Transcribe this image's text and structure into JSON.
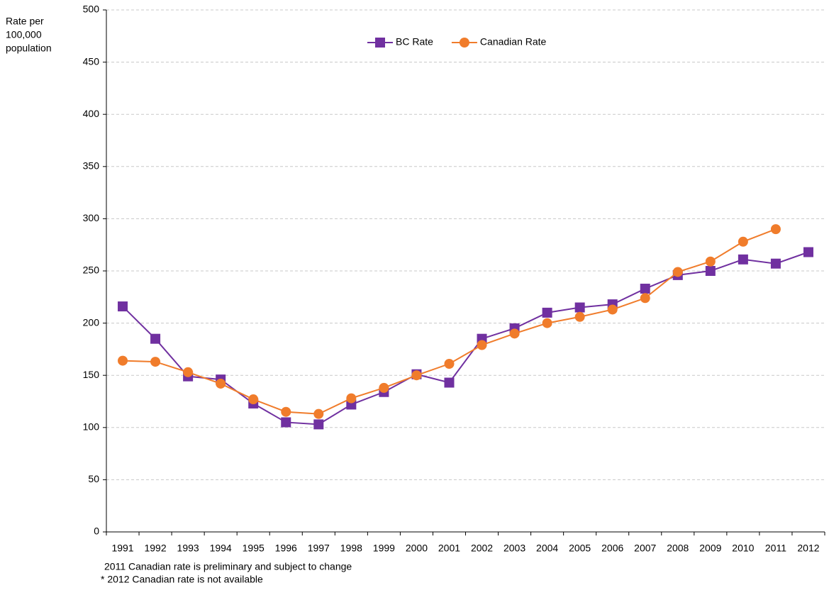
{
  "chart_data": {
    "type": "line",
    "ylabel_lines": [
      "Rate per",
      "100,000",
      "population"
    ],
    "categories": [
      "1991",
      "1992",
      "1993",
      "1994",
      "1995",
      "1996",
      "1997",
      "1998",
      "1999",
      "2000",
      "2001",
      "2002",
      "2003",
      "2004",
      "2005",
      "2006",
      "2007",
      "2008",
      "2009",
      "2010",
      "2011",
      "2012"
    ],
    "series": [
      {
        "name": "BC Rate",
        "color": "#7030a0",
        "marker": "square",
        "values": [
          216,
          185,
          149,
          146,
          123,
          105,
          103,
          122,
          134,
          151,
          143,
          185,
          195,
          210,
          215,
          218,
          233,
          246,
          250,
          261,
          257,
          268
        ]
      },
      {
        "name": "Canadian Rate",
        "color": "#f07c2b",
        "marker": "circle",
        "values": [
          164,
          163,
          153,
          142,
          127,
          115,
          113,
          128,
          138,
          150,
          161,
          179,
          190,
          200,
          206,
          213,
          224,
          249,
          259,
          278,
          290,
          null
        ]
      }
    ],
    "ylim": [
      0,
      500
    ],
    "yticks": [
      0,
      50,
      100,
      150,
      200,
      250,
      300,
      350,
      400,
      450,
      500
    ],
    "grid": true,
    "legend": "top",
    "notes": [
      "2011 Canadian rate is preliminary and subject to change",
      "* 2012 Canadian rate is not available"
    ]
  }
}
